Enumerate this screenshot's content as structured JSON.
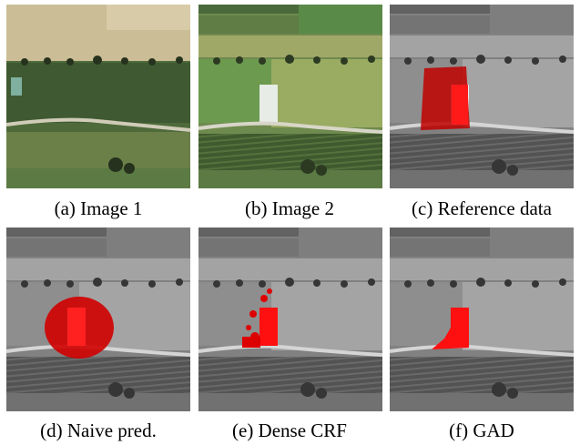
{
  "figure": {
    "panels": [
      {
        "caption": "(a) Image 1"
      },
      {
        "caption": "(b) Image 2"
      },
      {
        "caption": "(c) Reference data"
      },
      {
        "caption": "(d) Naive pred."
      },
      {
        "caption": "(e) Dense CRF"
      },
      {
        "caption": "(f) GAD"
      }
    ]
  }
}
